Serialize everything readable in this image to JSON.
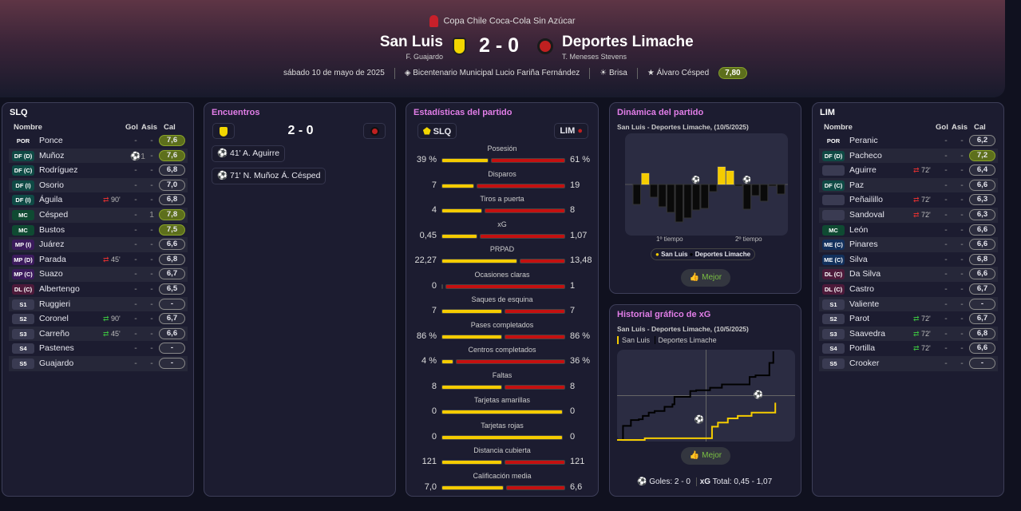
{
  "header": {
    "competition": "Copa Chile Coca-Cola Sin Azúcar",
    "home": "San Luis",
    "home_manager": "F. Guajardo",
    "away": "Deportes Limache",
    "away_manager": "T. Meneses Stevens",
    "score": "2 - 0",
    "date": "sábado 10 de mayo de 2025",
    "stadium": "Bicentenario Municipal Lucio Fariña Fernández",
    "weather": "Brisa",
    "mvp": "Álvaro Césped",
    "mvp_rating": "7,80"
  },
  "colors": {
    "home": "#f5cc00",
    "away": "#c41010",
    "accent_title": "#e27ee8",
    "good_rating": "#5d6f1c"
  },
  "columns": {
    "name": "Nombre",
    "goals": "Gol",
    "assists": "Asis",
    "rating": "Cal"
  },
  "home_team": {
    "abbr": "SLQ",
    "players": [
      {
        "pos": "POR",
        "name": "Ponce",
        "sub": "",
        "gol": "-",
        "asis": "-",
        "cal": "7,6"
      },
      {
        "pos": "DF (D)",
        "name": "Muñoz",
        "sub": "",
        "gol": "⚽1",
        "asis": "-",
        "cal": "7,6"
      },
      {
        "pos": "DF (C)",
        "name": "Rodríguez",
        "sub": "",
        "gol": "-",
        "asis": "-",
        "cal": "6,8"
      },
      {
        "pos": "DF (I)",
        "name": "Osorio",
        "sub": "",
        "gol": "-",
        "asis": "-",
        "cal": "7,0"
      },
      {
        "pos": "DF (I)",
        "name": "Águila",
        "sub": "90'",
        "subtype": "out",
        "gol": "-",
        "asis": "-",
        "cal": "6,8"
      },
      {
        "pos": "MC",
        "name": "Césped",
        "sub": "",
        "gol": "-",
        "asis": "1",
        "cal": "7,8"
      },
      {
        "pos": "MC",
        "name": "Bustos",
        "sub": "",
        "gol": "-",
        "asis": "-",
        "cal": "7,5"
      },
      {
        "pos": "MP (I)",
        "name": "Juárez",
        "sub": "",
        "gol": "-",
        "asis": "-",
        "cal": "6,6"
      },
      {
        "pos": "MP (D)",
        "name": "Parada",
        "sub": "45'",
        "subtype": "out",
        "gol": "-",
        "asis": "-",
        "cal": "6,8"
      },
      {
        "pos": "MP (C)",
        "name": "Suazo",
        "sub": "",
        "gol": "-",
        "asis": "-",
        "cal": "6,7"
      },
      {
        "pos": "DL (C)",
        "name": "Albertengo",
        "sub": "",
        "gol": "-",
        "asis": "-",
        "cal": "6,5"
      },
      {
        "pos": "S1",
        "name": "Ruggieri",
        "sub": "",
        "gol": "-",
        "asis": "-",
        "cal": "-"
      },
      {
        "pos": "S2",
        "name": "Coronel",
        "sub": "90'",
        "subtype": "in",
        "gol": "-",
        "asis": "-",
        "cal": "6,7"
      },
      {
        "pos": "S3",
        "name": "Carreño",
        "sub": "45'",
        "subtype": "in",
        "gol": "-",
        "asis": "-",
        "cal": "6,6"
      },
      {
        "pos": "S4",
        "name": "Pastenes",
        "sub": "",
        "gol": "-",
        "asis": "-",
        "cal": "-"
      },
      {
        "pos": "S5",
        "name": "Guajardo",
        "sub": "",
        "gol": "-",
        "asis": "-",
        "cal": "-"
      }
    ]
  },
  "away_team": {
    "abbr": "LIM",
    "players": [
      {
        "pos": "POR",
        "name": "Peranic",
        "sub": "",
        "gol": "-",
        "asis": "-",
        "cal": "6,2"
      },
      {
        "pos": "DF (D)",
        "name": "Pacheco",
        "sub": "",
        "gol": "-",
        "asis": "-",
        "cal": "7,2"
      },
      {
        "pos": "",
        "name": "Aguirre",
        "sub": "72'",
        "subtype": "out",
        "gol": "-",
        "asis": "-",
        "cal": "6,4"
      },
      {
        "pos": "DF (C)",
        "name": "Paz",
        "sub": "",
        "gol": "-",
        "asis": "-",
        "cal": "6,6"
      },
      {
        "pos": "",
        "name": "Peñailillo",
        "sub": "72'",
        "subtype": "out",
        "gol": "-",
        "asis": "-",
        "cal": "6,3"
      },
      {
        "pos": "",
        "name": "Sandoval",
        "sub": "72'",
        "subtype": "out",
        "gol": "-",
        "asis": "-",
        "cal": "6,3"
      },
      {
        "pos": "MC",
        "name": "León",
        "sub": "",
        "gol": "-",
        "asis": "-",
        "cal": "6,6"
      },
      {
        "pos": "ME (C)",
        "name": "Pinares",
        "sub": "",
        "gol": "-",
        "asis": "-",
        "cal": "6,6"
      },
      {
        "pos": "ME (C)",
        "name": "Silva",
        "sub": "",
        "gol": "-",
        "asis": "-",
        "cal": "6,8"
      },
      {
        "pos": "DL (C)",
        "name": "Da Silva",
        "sub": "",
        "gol": "-",
        "asis": "-",
        "cal": "6,6"
      },
      {
        "pos": "DL (C)",
        "name": "Castro",
        "sub": "",
        "gol": "-",
        "asis": "-",
        "cal": "6,7"
      },
      {
        "pos": "S1",
        "name": "Valiente",
        "sub": "",
        "gol": "-",
        "asis": "-",
        "cal": "-"
      },
      {
        "pos": "S2",
        "name": "Parot",
        "sub": "72'",
        "subtype": "in",
        "gol": "-",
        "asis": "-",
        "cal": "6,7"
      },
      {
        "pos": "S3",
        "name": "Saavedra",
        "sub": "72'",
        "subtype": "in",
        "gol": "-",
        "asis": "-",
        "cal": "6,8"
      },
      {
        "pos": "S4",
        "name": "Portilla",
        "sub": "72'",
        "subtype": "in",
        "gol": "-",
        "asis": "-",
        "cal": "6,6"
      },
      {
        "pos": "S5",
        "name": "Crooker",
        "sub": "",
        "gol": "-",
        "asis": "-",
        "cal": "-"
      }
    ]
  },
  "events": {
    "title": "Encuentros",
    "score": "2 - 0",
    "items": [
      {
        "icon": "own-goal-icon",
        "text": "41'  A. Aguirre"
      },
      {
        "icon": "goal-icon",
        "text": "71'  N. Muñoz  Á. Césped"
      }
    ]
  },
  "stats": {
    "title": "Estadísticas del partido",
    "home": "SLQ",
    "away": "LIM",
    "rows": [
      {
        "label": "Posesión",
        "home": "39 %",
        "away": "61 %",
        "h": 39,
        "a": 61
      },
      {
        "label": "Disparos",
        "home": "7",
        "away": "19",
        "h": 7,
        "a": 19
      },
      {
        "label": "Tiros a puerta",
        "home": "4",
        "away": "8",
        "h": 4,
        "a": 8
      },
      {
        "label": "xG",
        "home": "0,45",
        "away": "1,07",
        "h": 0.45,
        "a": 1.07
      },
      {
        "label": "PRPAD",
        "home": "22,27",
        "away": "13,48",
        "h": 22.27,
        "a": 13.48
      },
      {
        "label": "Ocasiones claras",
        "home": "0",
        "away": "1",
        "h": 0,
        "a": 1
      },
      {
        "label": "Saques de esquina",
        "home": "7",
        "away": "7",
        "h": 7,
        "a": 7
      },
      {
        "label": "Pases completados",
        "home": "86 %",
        "away": "86 %",
        "h": 86,
        "a": 86
      },
      {
        "label": "Centros completados",
        "home": "4 %",
        "away": "36 %",
        "h": 4,
        "a": 36
      },
      {
        "label": "Faltas",
        "home": "8",
        "away": "8",
        "h": 8,
        "a": 8
      },
      {
        "label": "Tarjetas amarillas",
        "home": "0",
        "away": "0",
        "h": 0,
        "a": 0
      },
      {
        "label": "Tarjetas rojas",
        "home": "0",
        "away": "0",
        "h": 0,
        "a": 0
      },
      {
        "label": "Distancia cubierta",
        "home": "121",
        "away": "121",
        "h": 121,
        "a": 121
      },
      {
        "label": "Calificación media",
        "home": "7,0",
        "away": "6,6",
        "h": 7.0,
        "a": 6.6
      }
    ]
  },
  "dynamics": {
    "title": "Dinámica del partido",
    "subtitle": "San Luis - Deportes Limache, (10/5/2025)",
    "half1": "1º tiempo",
    "half2": "2º tiempo",
    "legend_home": "San Luis",
    "legend_away": "Deportes Limache",
    "button": "Mejor"
  },
  "xg_history": {
    "title": "Historial gráfico de xG",
    "subtitle": "San Luis - Deportes Limache, (10/5/2025)",
    "legend_home": "San Luis",
    "legend_away": "Deportes Limache",
    "button": "Mejor",
    "goals_label": "Goles:",
    "goals": "2 - 0",
    "xg_label": "xG",
    "total_label": "Total:",
    "xg_total": "0,45  -  1,07"
  },
  "chart_data": [
    {
      "type": "bar",
      "title": "Dinámica del partido",
      "values": [
        -25,
        14,
        -16,
        -28,
        -35,
        -47,
        -42,
        -32,
        -30,
        -9,
        22,
        17,
        -2,
        -31,
        -14,
        -21,
        -2,
        -12
      ],
      "goal_bars": [
        7,
        13
      ],
      "series": [
        {
          "name": "San Luis",
          "color": "#f5cc00"
        },
        {
          "name": "Deportes Limache",
          "color": "#0a0a0a"
        }
      ],
      "xlabels": [
        "1º tiempo",
        "2º tiempo"
      ]
    },
    {
      "type": "line",
      "title": "Historial gráfico de xG",
      "xlim": [
        0,
        90
      ],
      "ylim": [
        0,
        1.07
      ],
      "series": [
        {
          "name": "San Luis",
          "color": "#f5cc00",
          "steps": [
            [
              0,
              0
            ],
            [
              14,
              0.02
            ],
            [
              48,
              0.16
            ],
            [
              51,
              0.21
            ],
            [
              56,
              0.26
            ],
            [
              61,
              0.29
            ],
            [
              68,
              0.33
            ],
            [
              80,
              0.45
            ]
          ]
        },
        {
          "name": "Deportes Limache",
          "color": "#000000",
          "steps": [
            [
              0,
              0
            ],
            [
              3,
              0.17
            ],
            [
              7,
              0.24
            ],
            [
              11,
              0.25
            ],
            [
              13,
              0.29
            ],
            [
              16,
              0.33
            ],
            [
              19,
              0.35
            ],
            [
              24,
              0.4
            ],
            [
              28,
              0.43
            ],
            [
              29,
              0.52
            ],
            [
              37,
              0.59
            ],
            [
              40,
              0.6
            ],
            [
              47,
              0.63
            ],
            [
              53,
              0.67
            ],
            [
              67,
              0.76
            ],
            [
              70,
              0.78
            ],
            [
              77,
              0.93
            ],
            [
              79,
              1.07
            ]
          ]
        }
      ],
      "goals": [
        {
          "minute": 41,
          "xg": 0.1
        },
        {
          "minute": 71,
          "xg": 0.4
        }
      ]
    }
  ]
}
